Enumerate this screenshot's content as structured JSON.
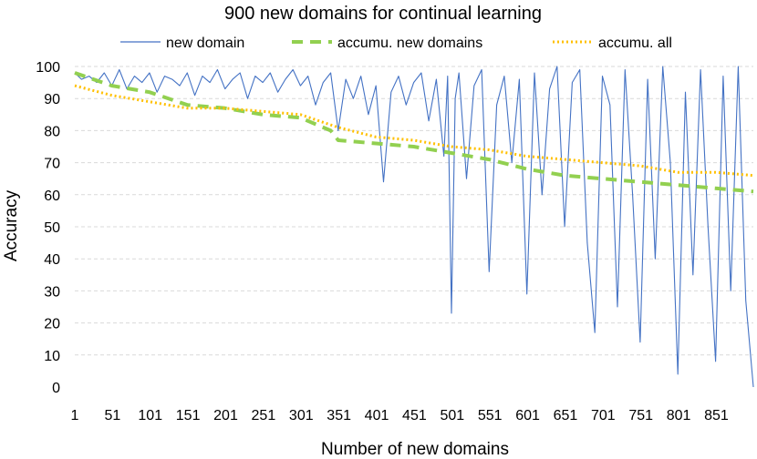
{
  "chart_data": {
    "type": "line",
    "title": "900 new domains for continual learning",
    "xlabel": "Number of new domains",
    "ylabel": "Accuracy",
    "xlim": [
      1,
      900
    ],
    "ylim": [
      0,
      100
    ],
    "x_ticks": [
      "1",
      "51",
      "101",
      "151",
      "201",
      "251",
      "301",
      "351",
      "401",
      "451",
      "501",
      "551",
      "601",
      "651",
      "701",
      "751",
      "801",
      "851"
    ],
    "y_ticks": [
      "0",
      "10",
      "20",
      "30",
      "40",
      "50",
      "60",
      "70",
      "80",
      "90",
      "100"
    ],
    "grid": "horizontal",
    "legend_position": "top",
    "series": [
      {
        "name": "new domain",
        "color": "#4472c4",
        "style": "solid",
        "x": [
          1,
          10,
          20,
          30,
          40,
          50,
          60,
          70,
          80,
          90,
          100,
          110,
          120,
          130,
          140,
          150,
          160,
          170,
          180,
          190,
          200,
          210,
          220,
          230,
          240,
          250,
          260,
          270,
          280,
          290,
          300,
          310,
          320,
          330,
          340,
          350,
          360,
          370,
          380,
          390,
          400,
          410,
          420,
          430,
          440,
          450,
          460,
          470,
          480,
          490,
          495,
          500,
          505,
          510,
          520,
          530,
          540,
          550,
          560,
          570,
          580,
          590,
          600,
          610,
          620,
          630,
          640,
          650,
          660,
          670,
          680,
          690,
          700,
          710,
          720,
          730,
          740,
          750,
          760,
          770,
          780,
          790,
          800,
          810,
          820,
          830,
          840,
          850,
          860,
          870,
          880,
          890,
          900
        ],
        "values": [
          98,
          96,
          97,
          95,
          98,
          94,
          99,
          93,
          97,
          95,
          98,
          92,
          97,
          96,
          94,
          98,
          91,
          97,
          95,
          99,
          93,
          96,
          98,
          90,
          97,
          95,
          98,
          92,
          96,
          99,
          94,
          97,
          88,
          95,
          98,
          80,
          96,
          90,
          97,
          85,
          94,
          64,
          92,
          97,
          88,
          95,
          98,
          83,
          96,
          72,
          97,
          23,
          90,
          98,
          65,
          94,
          99,
          36,
          88,
          97,
          70,
          96,
          29,
          98,
          60,
          93,
          100,
          50,
          95,
          99,
          45,
          17,
          97,
          88,
          25,
          99,
          60,
          14,
          96,
          40,
          100,
          70,
          4,
          92,
          35,
          99,
          50,
          8,
          97,
          30,
          100,
          27,
          0
        ]
      },
      {
        "name": "accumu. new domains",
        "color": "#92d050",
        "style": "dashed",
        "x": [
          1,
          50,
          100,
          150,
          200,
          250,
          300,
          340,
          350,
          400,
          450,
          500,
          550,
          600,
          650,
          700,
          750,
          800,
          850,
          900
        ],
        "values": [
          98,
          94,
          92,
          88,
          87,
          85,
          84,
          80,
          77,
          76,
          75,
          73,
          71,
          68,
          66,
          65,
          64,
          63,
          62,
          61
        ]
      },
      {
        "name": "accumu. all",
        "color": "#ffc000",
        "style": "dotted",
        "x": [
          1,
          50,
          100,
          150,
          200,
          250,
          300,
          350,
          400,
          450,
          500,
          550,
          600,
          650,
          700,
          750,
          800,
          850,
          900
        ],
        "values": [
          94,
          91,
          89,
          87,
          87,
          86,
          85,
          81,
          78,
          77,
          75,
          74,
          72,
          71,
          70,
          69,
          67,
          67,
          66
        ]
      }
    ]
  }
}
